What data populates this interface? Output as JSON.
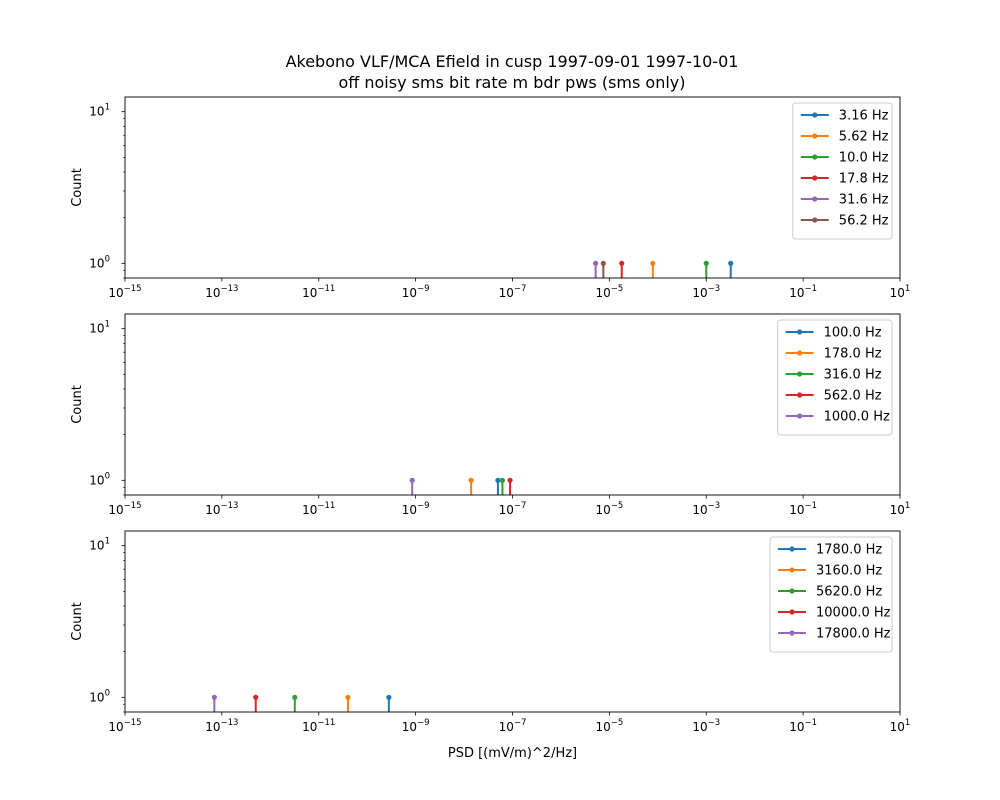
{
  "figure": {
    "title_line1": "Akebono VLF/MCA Efield in cusp 1997-09-01 1997-10-01",
    "title_line2": "off noisy sms bit rate m bdr pws (sms only)"
  },
  "chart_data": [
    {
      "type": "line",
      "xscale": "log",
      "yscale": "log",
      "xlim": [
        1e-15,
        10
      ],
      "ylim": [
        0.8,
        12.5
      ],
      "xlabel": "",
      "ylabel": "Count",
      "legend_position": "top-right",
      "series": [
        {
          "name": "3.16 Hz",
          "color": "#1f77b4",
          "x": 0.0032,
          "y": 1
        },
        {
          "name": "5.62 Hz",
          "color": "#ff7f0e",
          "x": 7.9e-05,
          "y": 1
        },
        {
          "name": "10.0 Hz",
          "color": "#2ca02c",
          "x": 0.001,
          "y": 1
        },
        {
          "name": "17.8 Hz",
          "color": "#d62728",
          "x": 1.8e-05,
          "y": 1
        },
        {
          "name": "31.6 Hz",
          "color": "#9467bd",
          "x": 5.2e-06,
          "y": 1
        },
        {
          "name": "56.2 Hz",
          "color": "#8c564b",
          "x": 7.5e-06,
          "y": 1
        }
      ]
    },
    {
      "type": "line",
      "xscale": "log",
      "yscale": "log",
      "xlim": [
        1e-15,
        10
      ],
      "ylim": [
        0.8,
        12.5
      ],
      "xlabel": "",
      "ylabel": "Count",
      "legend_position": "top-right",
      "series": [
        {
          "name": "100.0 Hz",
          "color": "#1f77b4",
          "x": 5e-08,
          "y": 1
        },
        {
          "name": "178.0 Hz",
          "color": "#ff7f0e",
          "x": 1.4e-08,
          "y": 1
        },
        {
          "name": "316.0 Hz",
          "color": "#2ca02c",
          "x": 6.2e-08,
          "y": 1
        },
        {
          "name": "562.0 Hz",
          "color": "#d62728",
          "x": 8.9e-08,
          "y": 1
        },
        {
          "name": "1000.0 Hz",
          "color": "#9467bd",
          "x": 8.5e-10,
          "y": 1
        }
      ]
    },
    {
      "type": "line",
      "xscale": "log",
      "yscale": "log",
      "xlim": [
        1e-15,
        10
      ],
      "ylim": [
        0.8,
        12.5
      ],
      "xlabel": "PSD [(mV/m)^2/Hz]",
      "ylabel": "Count",
      "legend_position": "top-right",
      "series": [
        {
          "name": "1780.0 Hz",
          "color": "#1f77b4",
          "x": 2.8e-10,
          "y": 1
        },
        {
          "name": "3160.0 Hz",
          "color": "#ff7f0e",
          "x": 4e-11,
          "y": 1
        },
        {
          "name": "5620.0 Hz",
          "color": "#2ca02c",
          "x": 3.2e-12,
          "y": 1
        },
        {
          "name": "10000.0 Hz",
          "color": "#d62728",
          "x": 5e-13,
          "y": 1
        },
        {
          "name": "17800.0 Hz",
          "color": "#9467bd",
          "x": 7e-14,
          "y": 1
        }
      ]
    }
  ],
  "x_tick_labels": [
    {
      "base": "10",
      "exp": "−15",
      "value": 1e-15
    },
    {
      "base": "10",
      "exp": "−13",
      "value": 1e-13
    },
    {
      "base": "10",
      "exp": "−11",
      "value": 1e-11
    },
    {
      "base": "10",
      "exp": "−9",
      "value": 1e-09
    },
    {
      "base": "10",
      "exp": "−7",
      "value": 1e-07
    },
    {
      "base": "10",
      "exp": "−5",
      "value": 1e-05
    },
    {
      "base": "10",
      "exp": "−3",
      "value": 0.001
    },
    {
      "base": "10",
      "exp": "−1",
      "value": 0.1
    },
    {
      "base": "10",
      "exp": "1",
      "value": 10
    }
  ],
  "y_tick_labels": [
    {
      "base": "10",
      "exp": "0",
      "value": 1
    },
    {
      "base": "10",
      "exp": "1",
      "value": 10
    }
  ]
}
